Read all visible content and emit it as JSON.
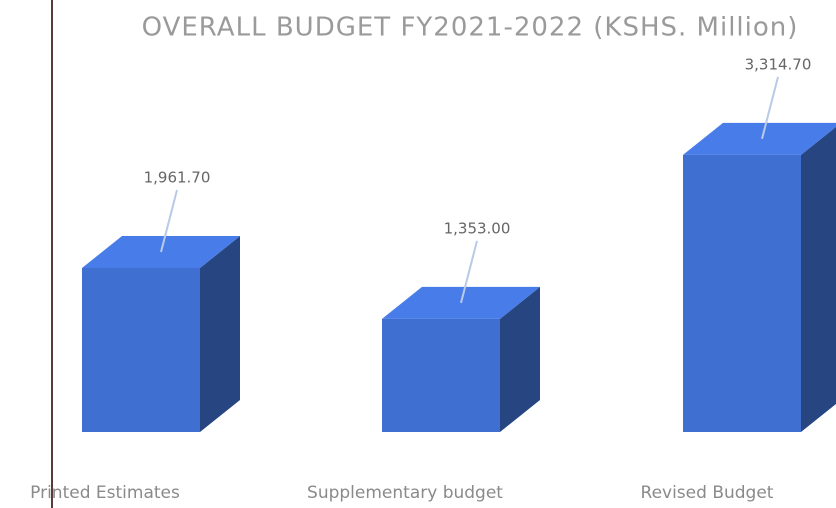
{
  "chart_data": {
    "type": "bar3d",
    "title": "OVERALL BUDGET FY2021-2022 (KSHS. Million)",
    "categories": [
      "Printed Estimates",
      "Supplementary budget",
      "Revised Budget"
    ],
    "values": [
      1961.7,
      1353.0,
      3314.7
    ],
    "value_labels": [
      "1,961.70",
      "1,353.00",
      "3,314.70"
    ],
    "color": "#3f6fd0"
  }
}
